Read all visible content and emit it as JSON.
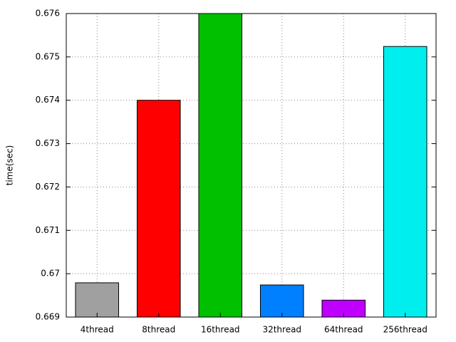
{
  "chart_data": {
    "type": "bar",
    "y_label": "time(sec)",
    "categories": [
      "4thread",
      "8thread",
      "16thread",
      "32thread",
      "64thread",
      "256thread"
    ],
    "values": [
      0.66979,
      0.674,
      0.676,
      0.66974,
      0.66939,
      0.67524
    ],
    "colors": [
      "#a0a0a0",
      "#ff0000",
      "#00c000",
      "#0080ff",
      "#c000ff",
      "#00eeee"
    ],
    "ylim": [
      0.669,
      0.676
    ],
    "yticks": [
      0.669,
      0.67,
      0.671,
      0.672,
      0.673,
      0.674,
      0.675,
      0.676
    ],
    "grid": true
  }
}
